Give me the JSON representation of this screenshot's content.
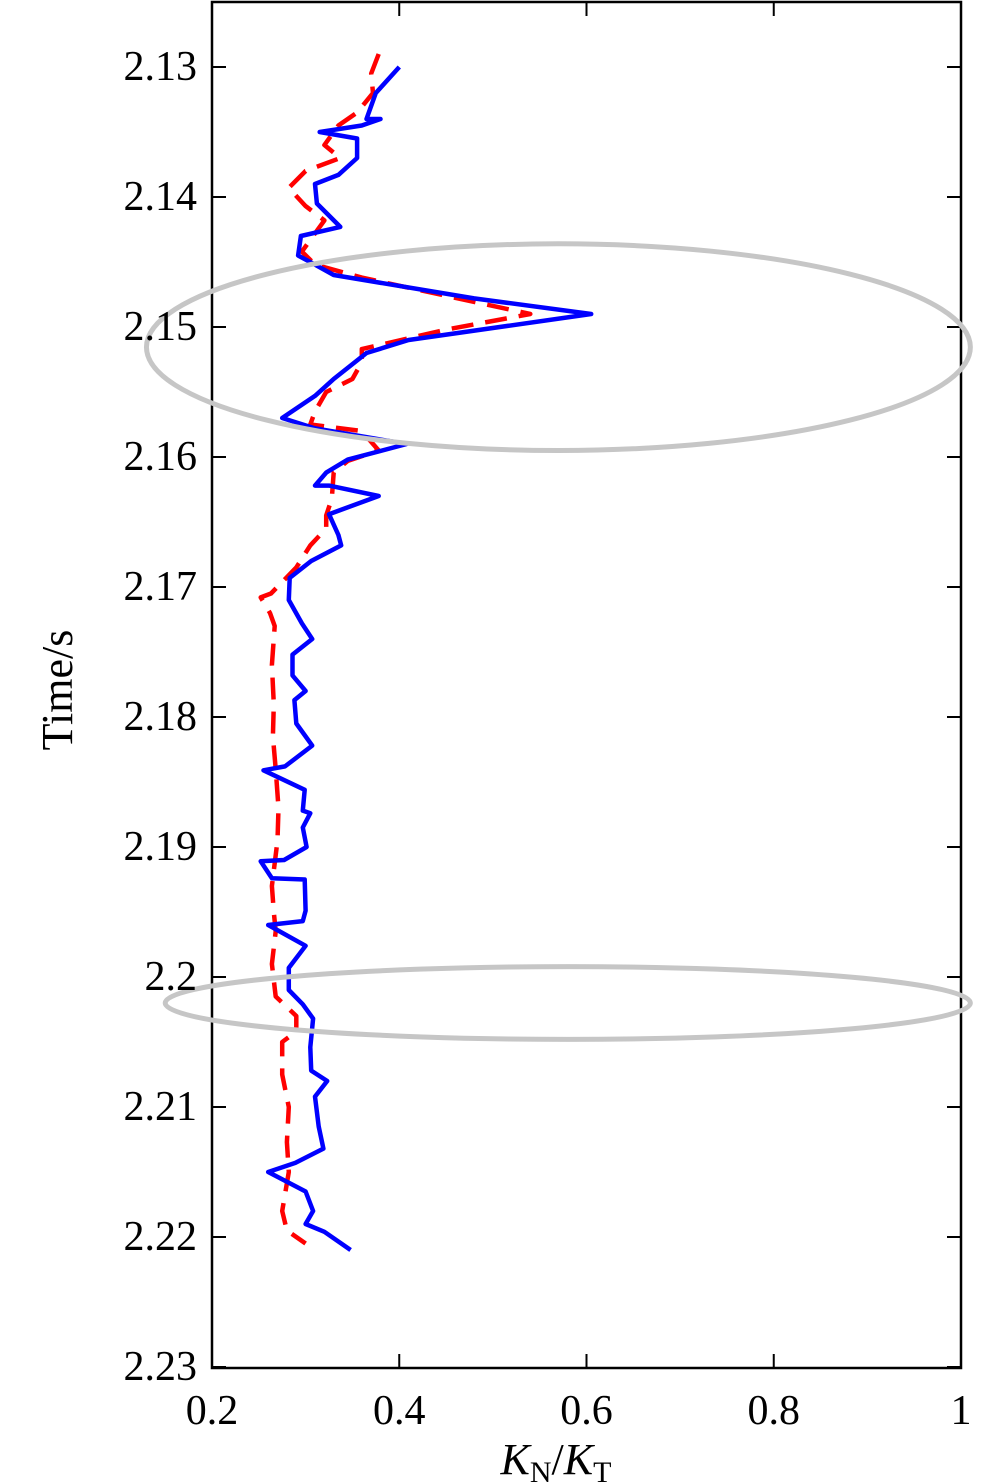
{
  "chart_data": {
    "type": "line",
    "xlabel": {
      "main1": "K",
      "sub1": "N",
      "sep": "/",
      "main2": "K",
      "sub2": "T"
    },
    "ylabel": "Time/s",
    "xlim": [
      0.2,
      1.0
    ],
    "ylim": [
      2.13,
      2.23
    ],
    "y_axis_reversed": true,
    "x_ticks": [
      {
        "value": 0.2,
        "label": "0.2"
      },
      {
        "value": 0.4,
        "label": "0.4"
      },
      {
        "value": 0.6,
        "label": "0.6"
      },
      {
        "value": 0.8,
        "label": "0.8"
      },
      {
        "value": 1.0,
        "label": "1"
      }
    ],
    "y_ticks": [
      {
        "value": 2.13,
        "label": "2.13"
      },
      {
        "value": 2.14,
        "label": "2.14"
      },
      {
        "value": 2.15,
        "label": "2.15"
      },
      {
        "value": 2.16,
        "label": "2.16"
      },
      {
        "value": 2.17,
        "label": "2.17"
      },
      {
        "value": 2.18,
        "label": "2.18"
      },
      {
        "value": 2.19,
        "label": "2.19"
      },
      {
        "value": 2.2,
        "label": "2.2"
      },
      {
        "value": 2.21,
        "label": "2.21"
      },
      {
        "value": 2.22,
        "label": "2.22"
      },
      {
        "value": 2.23,
        "label": "2.23"
      }
    ],
    "grid": false,
    "series": [
      {
        "color": "#0000ff",
        "style": "solid",
        "points": [
          [
            0.4,
            2.13
          ],
          [
            0.375,
            2.132
          ],
          [
            0.365,
            2.134
          ],
          [
            0.38,
            2.134
          ],
          [
            0.36,
            2.1345
          ],
          [
            0.315,
            2.135
          ],
          [
            0.355,
            2.1355
          ],
          [
            0.355,
            2.137
          ],
          [
            0.335,
            2.1383
          ],
          [
            0.31,
            2.139
          ],
          [
            0.312,
            2.1405
          ],
          [
            0.337,
            2.1423
          ],
          [
            0.295,
            2.143
          ],
          [
            0.292,
            2.1445
          ],
          [
            0.31,
            2.1452
          ],
          [
            0.33,
            2.146
          ],
          [
            0.48,
            2.1478
          ],
          [
            0.605,
            2.149
          ],
          [
            0.41,
            2.151
          ],
          [
            0.365,
            2.152
          ],
          [
            0.33,
            2.154
          ],
          [
            0.31,
            2.1553
          ],
          [
            0.275,
            2.157
          ],
          [
            0.31,
            2.1578
          ],
          [
            0.408,
            2.159
          ],
          [
            0.345,
            2.1602
          ],
          [
            0.322,
            2.1612
          ],
          [
            0.31,
            2.1622
          ],
          [
            0.325,
            2.1622
          ],
          [
            0.378,
            2.163
          ],
          [
            0.325,
            2.1644
          ],
          [
            0.335,
            2.166
          ],
          [
            0.338,
            2.1668
          ],
          [
            0.306,
            2.168
          ],
          [
            0.283,
            2.1693
          ],
          [
            0.282,
            2.171
          ],
          [
            0.296,
            2.1728
          ],
          [
            0.307,
            2.174
          ],
          [
            0.286,
            2.1752
          ],
          [
            0.286,
            2.1768
          ],
          [
            0.3,
            2.178
          ],
          [
            0.288,
            2.1787
          ],
          [
            0.29,
            2.1805
          ],
          [
            0.307,
            2.1822
          ],
          [
            0.278,
            2.1838
          ],
          [
            0.255,
            2.1841
          ],
          [
            0.299,
            2.1856
          ],
          [
            0.297,
            2.1872
          ],
          [
            0.305,
            2.1874
          ],
          [
            0.297,
            2.1885
          ],
          [
            0.301,
            2.19
          ],
          [
            0.277,
            2.191
          ],
          [
            0.252,
            2.1911
          ],
          [
            0.264,
            2.1924
          ],
          [
            0.299,
            2.1925
          ],
          [
            0.3,
            2.1949
          ],
          [
            0.297,
            2.1957
          ],
          [
            0.26,
            2.196
          ],
          [
            0.3,
            2.1976
          ],
          [
            0.282,
            2.1993
          ],
          [
            0.282,
            2.201
          ],
          [
            0.297,
            2.2021
          ],
          [
            0.308,
            2.2032
          ],
          [
            0.305,
            2.2054
          ],
          [
            0.306,
            2.2072
          ],
          [
            0.323,
            2.208
          ],
          [
            0.31,
            2.2092
          ],
          [
            0.314,
            2.2115
          ],
          [
            0.319,
            2.2132
          ],
          [
            0.289,
            2.2143
          ],
          [
            0.26,
            2.215
          ],
          [
            0.3,
            2.2165
          ],
          [
            0.308,
            2.218
          ],
          [
            0.3,
            2.219
          ],
          [
            0.32,
            2.2196
          ],
          [
            0.348,
            2.221
          ]
        ]
      },
      {
        "color": "#ff0000",
        "style": "dashed",
        "points": [
          [
            0.378,
            2.129
          ],
          [
            0.37,
            2.1305
          ],
          [
            0.372,
            2.132
          ],
          [
            0.355,
            2.1335
          ],
          [
            0.335,
            2.1345
          ],
          [
            0.32,
            2.136
          ],
          [
            0.337,
            2.137
          ],
          [
            0.3,
            2.138
          ],
          [
            0.282,
            2.1393
          ],
          [
            0.3,
            2.1407
          ],
          [
            0.32,
            2.1418
          ],
          [
            0.308,
            2.143
          ],
          [
            0.296,
            2.1442
          ],
          [
            0.31,
            2.1452
          ],
          [
            0.36,
            2.1462
          ],
          [
            0.45,
            2.1476
          ],
          [
            0.54,
            2.149
          ],
          [
            0.45,
            2.1502
          ],
          [
            0.36,
            2.1517
          ],
          [
            0.36,
            2.1527
          ],
          [
            0.35,
            2.154
          ],
          [
            0.322,
            2.155
          ],
          [
            0.31,
            2.1565
          ],
          [
            0.305,
            2.1575
          ],
          [
            0.36,
            2.158
          ],
          [
            0.378,
            2.1595
          ],
          [
            0.345,
            2.1603
          ],
          [
            0.33,
            2.1612
          ],
          [
            0.328,
            2.1632
          ],
          [
            0.322,
            2.1645
          ],
          [
            0.322,
            2.1655
          ],
          [
            0.305,
            2.1668
          ],
          [
            0.29,
            2.1685
          ],
          [
            0.263,
            2.1705
          ],
          [
            0.252,
            2.1708
          ],
          [
            0.262,
            2.172
          ],
          [
            0.267,
            2.173
          ],
          [
            0.264,
            2.176
          ],
          [
            0.266,
            2.179
          ],
          [
            0.265,
            2.1815
          ],
          [
            0.268,
            2.184
          ],
          [
            0.271,
            2.187
          ],
          [
            0.27,
            2.1895
          ],
          [
            0.264,
            2.193
          ],
          [
            0.266,
            2.195
          ],
          [
            0.268,
            2.1965
          ],
          [
            0.264,
            2.199
          ],
          [
            0.268,
            2.2015
          ],
          [
            0.29,
            2.203
          ],
          [
            0.29,
            2.2042
          ],
          [
            0.275,
            2.205
          ],
          [
            0.275,
            2.2075
          ],
          [
            0.282,
            2.21
          ],
          [
            0.28,
            2.2127
          ],
          [
            0.282,
            2.215
          ],
          [
            0.275,
            2.218
          ],
          [
            0.28,
            2.2195
          ],
          [
            0.3,
            2.2205
          ]
        ]
      }
    ],
    "annotations": [
      {
        "type": "ellipse",
        "color": "#c6c6c6",
        "x_range": [
          0.13,
          1.01
        ],
        "y_range": [
          2.1436,
          2.1595
        ]
      },
      {
        "type": "ellipse",
        "color": "#c6c6c6",
        "x_range": [
          0.15,
          1.01
        ],
        "y_range": [
          2.1992,
          2.2048
        ]
      }
    ]
  }
}
